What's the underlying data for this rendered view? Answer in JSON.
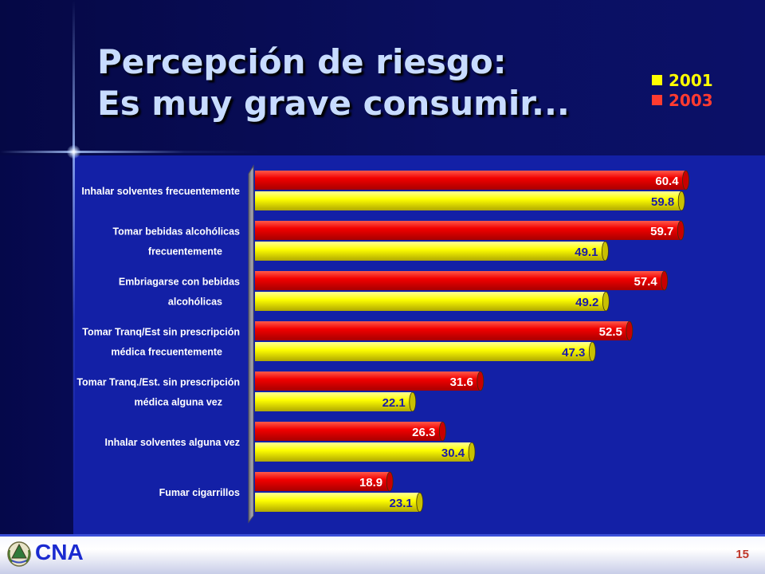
{
  "slide": {
    "title_line1": "Percepción de riesgo:",
    "title_line2": "Es muy grave consumir...",
    "footer": {
      "logo_text": "CNA",
      "page_number": "15"
    }
  },
  "chart_data": {
    "type": "bar",
    "orientation": "horizontal",
    "categories": [
      [
        "Inhalar solventes frecuentemente"
      ],
      [
        "Tomar bebidas alcohólicas",
        "frecuentemente"
      ],
      [
        "Embriagarse con bebidas",
        "alcohólicas"
      ],
      [
        "Tomar Tranq/Est sin prescripción",
        "médica frecuentemente"
      ],
      [
        "Tomar Tranq./Est. sin prescripción",
        "médica alguna vez"
      ],
      [
        "Inhalar solventes alguna vez"
      ],
      [
        "Fumar cigarrillos"
      ]
    ],
    "series": [
      {
        "name": "2001",
        "color": "#ffff00",
        "label_color": "#1a1aa8",
        "values": [
          59.8,
          49.1,
          49.2,
          47.3,
          22.1,
          30.4,
          23.1
        ]
      },
      {
        "name": "2003",
        "color": "#ff0000",
        "label_color": "#ffffff",
        "values": [
          60.4,
          59.7,
          57.4,
          52.5,
          31.6,
          26.3,
          18.9
        ]
      }
    ],
    "xlim": [
      0,
      65
    ],
    "legend_position": "top-right",
    "grid": false,
    "data_labels": true,
    "legend_colors": {
      "2001": "#ffff00",
      "2003": "#ff3b30"
    }
  }
}
